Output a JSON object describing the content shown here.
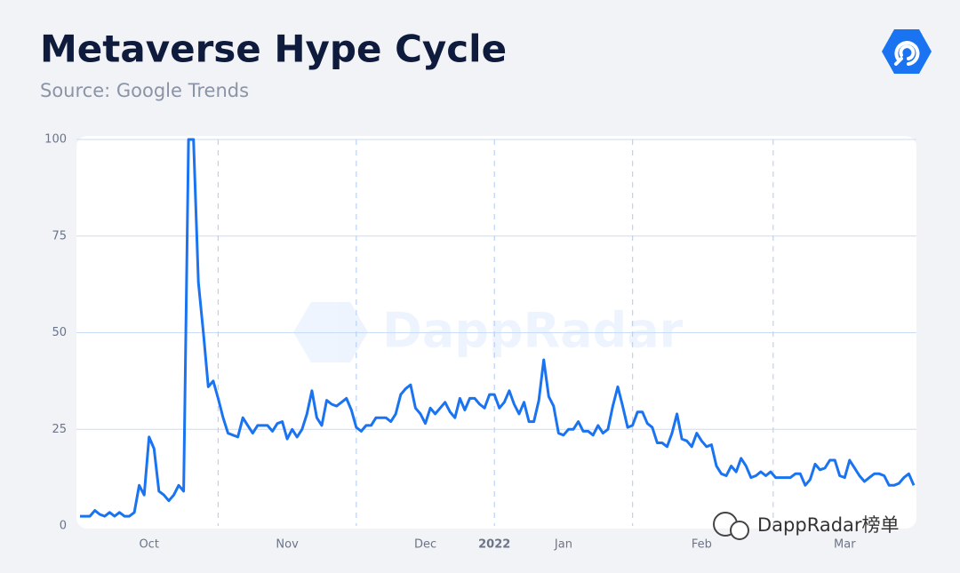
{
  "chart_data": {
    "type": "line",
    "title": "Metaverse Hype Cycle",
    "subtitle": "Source: Google Trends",
    "watermark": "DappRadar",
    "corner_label": "DappRadar榜单",
    "year_label": "2022",
    "color": "#1a73f0",
    "values": [
      2.5,
      2.5,
      2.5,
      4,
      3,
      2.5,
      3.5,
      2.5,
      3.5,
      2.5,
      2.5,
      3.5,
      10.5,
      8,
      23,
      20,
      9,
      8,
      6.5,
      8,
      10.5,
      9,
      100,
      100,
      63,
      50,
      36,
      37.5,
      33,
      28,
      24,
      23.5,
      23,
      28,
      26,
      24,
      26,
      26,
      26,
      24.5,
      26.5,
      27,
      22.5,
      25,
      23,
      25,
      29,
      35,
      28,
      26,
      32.5,
      31.5,
      31,
      32,
      33,
      30,
      25.5,
      24.5,
      26,
      26,
      28,
      28,
      28,
      27,
      29,
      34,
      35.5,
      36.5,
      30.5,
      29,
      26.5,
      30.5,
      29,
      30.5,
      32,
      29.5,
      28,
      33,
      30,
      33,
      33,
      31.5,
      30.5,
      34,
      34,
      30.5,
      32,
      35,
      31.5,
      29,
      32,
      27,
      27,
      32.5,
      43,
      33.5,
      31,
      24,
      23.5,
      25,
      25,
      27,
      24.5,
      24.5,
      23.5,
      26,
      24,
      25,
      31,
      36,
      31,
      25.5,
      26,
      29.5,
      29.5,
      26.5,
      25.5,
      21.5,
      21.5,
      20.5,
      24,
      29,
      22.5,
      22,
      20.5,
      24,
      22,
      20.5,
      21,
      15.5,
      13.5,
      13,
      15.5,
      14,
      17.5,
      15.5,
      12.5,
      13,
      14,
      13,
      14,
      12.5,
      12.5,
      12.5,
      12.5,
      13.5,
      13.5,
      10.5,
      12,
      16,
      14.5,
      15,
      17,
      17,
      13,
      12.5,
      17,
      15,
      13,
      11.5,
      12.5,
      13.5,
      13.5,
      13,
      10.5,
      10.5,
      11,
      12.5,
      13.5,
      10.5
    ],
    "xticks": [
      {
        "value": 14,
        "label": "Oct"
      },
      {
        "value": 42,
        "label": "Nov"
      },
      {
        "value": 70,
        "label": "Dec"
      },
      {
        "value": 98,
        "label": "Jan"
      },
      {
        "value": 126,
        "label": "Feb"
      },
      {
        "value": 155,
        "label": "Mar"
      }
    ],
    "ylim": [
      0,
      100
    ],
    "yticks": [
      0,
      25,
      50,
      75,
      100
    ],
    "grid": true
  }
}
